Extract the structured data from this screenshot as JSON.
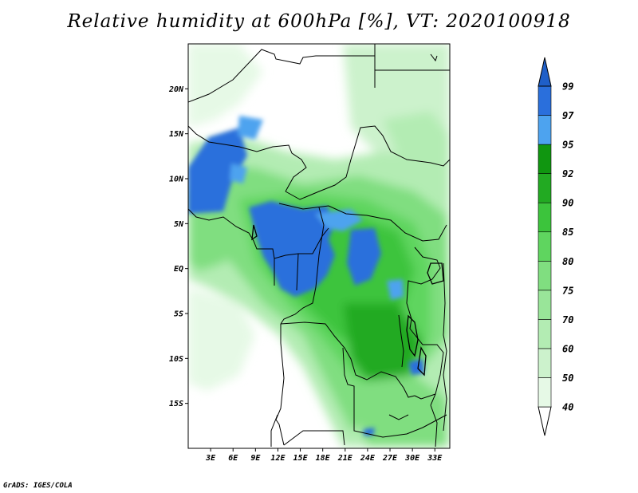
{
  "title": "Relative humidity at 600hPa [%], VT: 2020100918",
  "credit": "GrADS: IGES/COLA",
  "map": {
    "lon_range": [
      0,
      35
    ],
    "lat_range": [
      -20,
      25
    ],
    "lat_ticks": [
      {
        "value": 20,
        "label": "20N"
      },
      {
        "value": 15,
        "label": "15N"
      },
      {
        "value": 10,
        "label": "10N"
      },
      {
        "value": 5,
        "label": "5N"
      },
      {
        "value": 0,
        "label": "EQ"
      },
      {
        "value": -5,
        "label": "5S"
      },
      {
        "value": -10,
        "label": "10S"
      },
      {
        "value": -15,
        "label": "15S"
      }
    ],
    "lon_ticks": [
      {
        "value": 3,
        "label": "3E"
      },
      {
        "value": 6,
        "label": "6E"
      },
      {
        "value": 9,
        "label": "9E"
      },
      {
        "value": 12,
        "label": "12E"
      },
      {
        "value": 15,
        "label": "15E"
      },
      {
        "value": 18,
        "label": "18E"
      },
      {
        "value": 21,
        "label": "21E"
      },
      {
        "value": 24,
        "label": "24E"
      },
      {
        "value": 27,
        "label": "27E"
      },
      {
        "value": 30,
        "label": "30E"
      },
      {
        "value": 33,
        "label": "33E"
      }
    ]
  },
  "colorbar": {
    "levels": [
      {
        "label": "40",
        "color": "#ffffff"
      },
      {
        "label": "50",
        "color": "#e6f9e6"
      },
      {
        "label": "60",
        "color": "#ccf2cc"
      },
      {
        "label": "70",
        "color": "#b3ecb3"
      },
      {
        "label": "75",
        "color": "#99e599"
      },
      {
        "label": "80",
        "color": "#80de80"
      },
      {
        "label": "85",
        "color": "#5fd55f"
      },
      {
        "label": "90",
        "color": "#3cc43c"
      },
      {
        "label": "92",
        "color": "#22aa22"
      },
      {
        "label": "95",
        "color": "#109610"
      },
      {
        "label": "97",
        "color": "#4da3ef"
      },
      {
        "label": "99",
        "color": "#2a6fdc"
      }
    ],
    "top_color": "#1f5fc8"
  }
}
